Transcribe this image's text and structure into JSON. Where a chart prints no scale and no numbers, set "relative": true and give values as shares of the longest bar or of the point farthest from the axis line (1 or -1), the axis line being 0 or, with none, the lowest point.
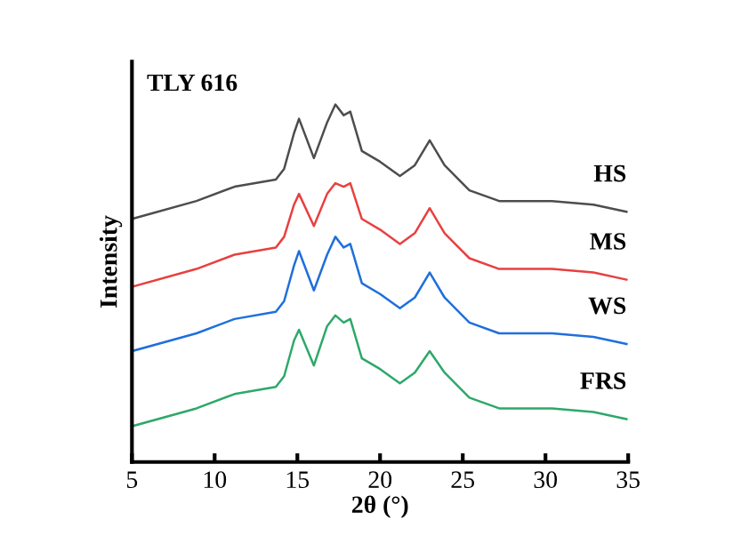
{
  "chart_data": {
    "type": "line",
    "relative": true,
    "xlabel": "2θ (°)",
    "ylabel": "Intensity",
    "annotations": [
      "TLY 616"
    ],
    "x": [
      5,
      8.9,
      11.2,
      13.7,
      14.2,
      14.8,
      15.1,
      16.0,
      16.8,
      17.3,
      17.8,
      18.2,
      18.9,
      20.0,
      21.2,
      22.1,
      23.0,
      23.9,
      25.4,
      27.2,
      30.4,
      32.9,
      34.9
    ],
    "xlim": [
      5,
      35
    ],
    "xticks": [
      5,
      10,
      15,
      20,
      25,
      30,
      35
    ],
    "grid": false,
    "legend": false,
    "marker": "none",
    "line_style": "solid",
    "series": [
      {
        "name": "HS",
        "color": "#4d4d4d",
        "values": [
          0.68,
          0.73,
          0.77,
          0.79,
          0.82,
          0.92,
          0.96,
          0.85,
          0.95,
          1.0,
          0.97,
          0.98,
          0.87,
          0.84,
          0.8,
          0.83,
          0.9,
          0.83,
          0.76,
          0.73,
          0.73,
          0.72,
          0.7
        ]
      },
      {
        "name": "MS",
        "color": "#e84040",
        "values": [
          0.49,
          0.54,
          0.58,
          0.6,
          0.63,
          0.72,
          0.75,
          0.66,
          0.75,
          0.78,
          0.77,
          0.78,
          0.68,
          0.65,
          0.61,
          0.64,
          0.71,
          0.64,
          0.57,
          0.54,
          0.54,
          0.53,
          0.51
        ]
      },
      {
        "name": "WS",
        "color": "#1f6fdc",
        "values": [
          0.31,
          0.36,
          0.4,
          0.42,
          0.45,
          0.55,
          0.59,
          0.48,
          0.58,
          0.63,
          0.6,
          0.61,
          0.5,
          0.47,
          0.43,
          0.46,
          0.53,
          0.46,
          0.39,
          0.36,
          0.36,
          0.35,
          0.33
        ]
      },
      {
        "name": "FRS",
        "color": "#2ea86a",
        "values": [
          0.1,
          0.15,
          0.19,
          0.21,
          0.24,
          0.34,
          0.37,
          0.27,
          0.38,
          0.41,
          0.39,
          0.4,
          0.29,
          0.26,
          0.22,
          0.25,
          0.31,
          0.25,
          0.18,
          0.15,
          0.15,
          0.14,
          0.12
        ]
      }
    ]
  }
}
